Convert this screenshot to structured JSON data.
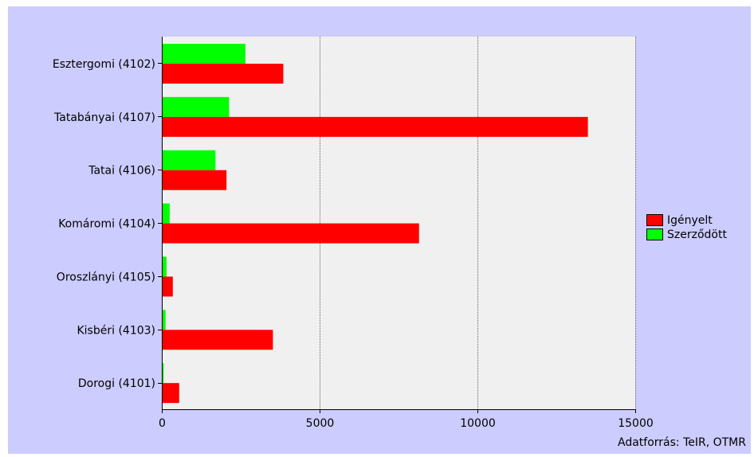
{
  "chart_data": {
    "type": "bar",
    "orientation": "horizontal",
    "categories": [
      "Esztergomi (4102)",
      "Tatabányai (4107)",
      "Tatai (4106)",
      "Komáromi (4104)",
      "Oroszlányi (4105)",
      "Kisbéri (4103)",
      "Dorogi (4101)"
    ],
    "series": [
      {
        "name": "Szerződött",
        "color": "#00ff00",
        "values": [
          2650,
          2130,
          1700,
          250,
          150,
          120,
          60
        ]
      },
      {
        "name": "Igényelt",
        "color": "#ff0000",
        "values": [
          3850,
          13500,
          2050,
          8150,
          350,
          3520,
          550
        ]
      }
    ],
    "xlim": [
      0,
      15000
    ],
    "xticks": [
      0,
      5000,
      10000,
      15000
    ],
    "grid": true,
    "legend_position": "right",
    "legend_order": [
      "Igényelt",
      "Szerződött"
    ],
    "plot_background": "#f0f0f0",
    "page_background": "#ccccff"
  },
  "source_label": "Adatforrás: TeIR, OTMR"
}
